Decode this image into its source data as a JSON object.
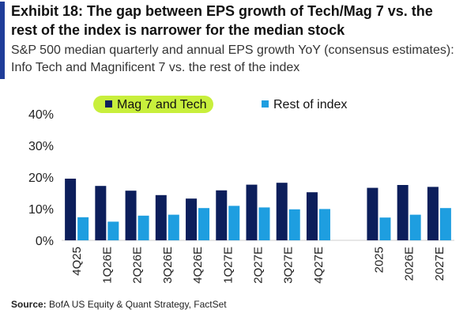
{
  "title": "Exhibit 18: The gap between EPS growth of Tech/Mag 7 vs. the rest of the index is narrower for the median stock",
  "subtitle": "S&P 500 median quarterly and annual EPS growth YoY (consensus estimates): Info Tech and Magnificent 7 vs. the rest of the index",
  "source_label": "Source:",
  "source_text": "BofA US Equity & Quant Strategy, FactSet",
  "colors": {
    "accent": "#1f3d99",
    "series1": "#0c1e5b",
    "series2": "#1e9ee0",
    "highlight": "#c8ef3c"
  },
  "chart_data": {
    "type": "bar",
    "title": "",
    "xlabel": "",
    "ylabel": "",
    "ylim": [
      0,
      40
    ],
    "yticks": [
      "0%",
      "10%",
      "20%",
      "30%",
      "40%"
    ],
    "grid": false,
    "legend_position": "top",
    "categories": [
      "4Q25",
      "1Q26E",
      "2Q26E",
      "3Q26E",
      "4Q26E",
      "1Q27E",
      "2Q27E",
      "3Q27E",
      "4Q27E",
      "",
      "2025",
      "2026E",
      "2027E"
    ],
    "series": [
      {
        "name": "Mag 7 and Tech",
        "color": "#0c1e5b",
        "values": [
          19.5,
          17.2,
          15.7,
          14.3,
          13.2,
          15.8,
          17.6,
          18.2,
          15.2,
          null,
          16.6,
          17.5,
          16.9
        ]
      },
      {
        "name": "Rest of index",
        "color": "#1e9ee0",
        "values": [
          7.3,
          5.9,
          7.8,
          8.1,
          10.2,
          10.9,
          10.4,
          9.8,
          9.9,
          null,
          7.2,
          8.1,
          10.2
        ]
      }
    ]
  }
}
